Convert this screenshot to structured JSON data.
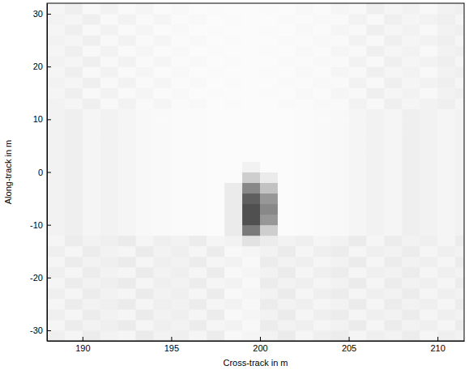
{
  "chart_data": {
    "type": "heatmap",
    "xlabel": "Cross-track in m",
    "ylabel": "Along-track in m",
    "xlim": [
      188,
      211.5
    ],
    "ylim": [
      -32,
      32
    ],
    "xticks": [
      190,
      195,
      200,
      205,
      210
    ],
    "yticks": [
      -30,
      -20,
      -10,
      0,
      10,
      20,
      30
    ],
    "grid": false,
    "zlim": [
      0,
      1
    ],
    "x_edges": [
      188,
      189,
      190,
      191,
      192,
      193,
      194,
      195,
      196,
      197,
      198,
      199,
      200,
      201,
      202,
      203,
      204,
      205,
      206,
      207,
      208,
      209,
      210,
      211,
      211.5
    ],
    "y_edges": [
      -32,
      -30,
      -28,
      -26,
      -24,
      -22,
      -20,
      -18,
      -16,
      -14,
      -12,
      -10,
      -8,
      -6,
      -4,
      -2,
      0,
      2,
      4,
      6,
      8,
      10,
      12,
      14,
      16,
      18,
      20,
      22,
      24,
      26,
      28,
      30,
      32
    ],
    "cells": [
      [
        0.12,
        0.08,
        0.14,
        0.1,
        0.08,
        0.15,
        0.1,
        0.12,
        0.08,
        0.14,
        0.06,
        0.08,
        0.1,
        0.15,
        0.08,
        0.12,
        0.14,
        0.08,
        0.12,
        0.1,
        0.14,
        0.08,
        0.12,
        0.1
      ],
      [
        0.08,
        0.14,
        0.1,
        0.12,
        0.15,
        0.08,
        0.12,
        0.1,
        0.14,
        0.08,
        0.1,
        0.06,
        0.14,
        0.1,
        0.12,
        0.08,
        0.1,
        0.15,
        0.08,
        0.14,
        0.1,
        0.12,
        0.08,
        0.14
      ],
      [
        0.12,
        0.08,
        0.14,
        0.1,
        0.08,
        0.15,
        0.1,
        0.12,
        0.08,
        0.14,
        0.06,
        0.08,
        0.1,
        0.15,
        0.08,
        0.12,
        0.14,
        0.08,
        0.12,
        0.1,
        0.14,
        0.08,
        0.12,
        0.1
      ],
      [
        0.08,
        0.14,
        0.1,
        0.12,
        0.15,
        0.08,
        0.12,
        0.1,
        0.14,
        0.08,
        0.1,
        0.06,
        0.14,
        0.1,
        0.12,
        0.08,
        0.1,
        0.15,
        0.08,
        0.14,
        0.1,
        0.12,
        0.08,
        0.14
      ],
      [
        0.12,
        0.08,
        0.14,
        0.1,
        0.08,
        0.15,
        0.1,
        0.12,
        0.08,
        0.14,
        0.06,
        0.08,
        0.1,
        0.15,
        0.08,
        0.12,
        0.14,
        0.08,
        0.12,
        0.1,
        0.14,
        0.08,
        0.12,
        0.1
      ],
      [
        0.08,
        0.14,
        0.1,
        0.12,
        0.15,
        0.08,
        0.12,
        0.1,
        0.14,
        0.08,
        0.1,
        0.06,
        0.14,
        0.1,
        0.12,
        0.08,
        0.1,
        0.15,
        0.08,
        0.14,
        0.1,
        0.12,
        0.08,
        0.14
      ],
      [
        0.12,
        0.08,
        0.14,
        0.1,
        0.08,
        0.15,
        0.1,
        0.12,
        0.08,
        0.14,
        0.06,
        0.08,
        0.1,
        0.15,
        0.08,
        0.12,
        0.14,
        0.08,
        0.12,
        0.1,
        0.14,
        0.08,
        0.12,
        0.1
      ],
      [
        0.08,
        0.14,
        0.1,
        0.12,
        0.15,
        0.08,
        0.12,
        0.1,
        0.14,
        0.08,
        0.1,
        0.06,
        0.14,
        0.1,
        0.12,
        0.08,
        0.1,
        0.15,
        0.08,
        0.14,
        0.1,
        0.12,
        0.08,
        0.14
      ],
      [
        0.12,
        0.08,
        0.14,
        0.1,
        0.08,
        0.15,
        0.1,
        0.12,
        0.08,
        0.14,
        0.06,
        0.08,
        0.1,
        0.15,
        0.08,
        0.12,
        0.14,
        0.08,
        0.12,
        0.1,
        0.14,
        0.08,
        0.12,
        0.1
      ],
      [
        0.08,
        0.14,
        0.1,
        0.12,
        0.15,
        0.08,
        0.12,
        0.1,
        0.14,
        0.08,
        0.1,
        0.2,
        0.14,
        0.1,
        0.12,
        0.08,
        0.1,
        0.15,
        0.08,
        0.14,
        0.1,
        0.12,
        0.08,
        0.14
      ],
      [
        0.1,
        0.12,
        0.08,
        0.1,
        0.08,
        0.06,
        0.05,
        0.04,
        0.04,
        0.03,
        0.15,
        0.6,
        0.3,
        0.03,
        0.04,
        0.05,
        0.06,
        0.08,
        0.1,
        0.08,
        0.12,
        0.1,
        0.08,
        0.1
      ],
      [
        0.1,
        0.12,
        0.08,
        0.1,
        0.08,
        0.06,
        0.05,
        0.04,
        0.04,
        0.03,
        0.15,
        0.75,
        0.5,
        0.03,
        0.04,
        0.05,
        0.06,
        0.08,
        0.1,
        0.08,
        0.12,
        0.1,
        0.08,
        0.1
      ],
      [
        0.1,
        0.12,
        0.08,
        0.1,
        0.08,
        0.06,
        0.05,
        0.04,
        0.04,
        0.03,
        0.15,
        0.75,
        0.55,
        0.03,
        0.04,
        0.05,
        0.06,
        0.08,
        0.1,
        0.08,
        0.12,
        0.1,
        0.08,
        0.1
      ],
      [
        0.1,
        0.12,
        0.08,
        0.1,
        0.08,
        0.06,
        0.05,
        0.04,
        0.04,
        0.03,
        0.15,
        0.7,
        0.5,
        0.03,
        0.04,
        0.05,
        0.06,
        0.08,
        0.1,
        0.08,
        0.12,
        0.1,
        0.08,
        0.1
      ],
      [
        0.1,
        0.12,
        0.08,
        0.1,
        0.08,
        0.06,
        0.05,
        0.04,
        0.04,
        0.03,
        0.15,
        0.55,
        0.35,
        0.03,
        0.04,
        0.05,
        0.06,
        0.08,
        0.1,
        0.08,
        0.12,
        0.1,
        0.08,
        0.1
      ],
      [
        0.1,
        0.12,
        0.08,
        0.1,
        0.08,
        0.06,
        0.05,
        0.04,
        0.04,
        0.03,
        0.03,
        0.3,
        0.15,
        0.03,
        0.04,
        0.05,
        0.06,
        0.08,
        0.1,
        0.08,
        0.12,
        0.1,
        0.08,
        0.1
      ],
      [
        0.1,
        0.12,
        0.08,
        0.1,
        0.08,
        0.06,
        0.05,
        0.04,
        0.04,
        0.03,
        0.03,
        0.1,
        0.03,
        0.03,
        0.04,
        0.05,
        0.06,
        0.08,
        0.1,
        0.08,
        0.12,
        0.1,
        0.08,
        0.1
      ],
      [
        0.1,
        0.12,
        0.08,
        0.1,
        0.08,
        0.06,
        0.05,
        0.04,
        0.04,
        0.03,
        0.03,
        0.03,
        0.03,
        0.03,
        0.04,
        0.05,
        0.06,
        0.08,
        0.1,
        0.08,
        0.12,
        0.1,
        0.08,
        0.1
      ],
      [
        0.1,
        0.12,
        0.08,
        0.1,
        0.08,
        0.06,
        0.05,
        0.04,
        0.04,
        0.03,
        0.03,
        0.03,
        0.03,
        0.03,
        0.04,
        0.05,
        0.06,
        0.08,
        0.1,
        0.08,
        0.12,
        0.1,
        0.08,
        0.1
      ],
      [
        0.1,
        0.12,
        0.08,
        0.1,
        0.08,
        0.06,
        0.05,
        0.04,
        0.04,
        0.03,
        0.03,
        0.03,
        0.03,
        0.03,
        0.04,
        0.05,
        0.06,
        0.08,
        0.1,
        0.08,
        0.12,
        0.1,
        0.08,
        0.1
      ],
      [
        0.1,
        0.12,
        0.08,
        0.1,
        0.08,
        0.06,
        0.05,
        0.04,
        0.04,
        0.03,
        0.03,
        0.03,
        0.03,
        0.03,
        0.04,
        0.05,
        0.06,
        0.08,
        0.1,
        0.08,
        0.12,
        0.1,
        0.08,
        0.1
      ],
      [
        0.1,
        0.12,
        0.08,
        0.1,
        0.08,
        0.06,
        0.05,
        0.04,
        0.04,
        0.03,
        0.03,
        0.03,
        0.03,
        0.03,
        0.04,
        0.05,
        0.06,
        0.08,
        0.1,
        0.08,
        0.12,
        0.1,
        0.08,
        0.1
      ],
      [
        0.1,
        0.08,
        0.12,
        0.06,
        0.1,
        0.05,
        0.08,
        0.04,
        0.06,
        0.03,
        0.04,
        0.03,
        0.03,
        0.05,
        0.04,
        0.06,
        0.05,
        0.1,
        0.06,
        0.12,
        0.08,
        0.1,
        0.12,
        0.08
      ],
      [
        0.08,
        0.12,
        0.06,
        0.1,
        0.05,
        0.08,
        0.04,
        0.06,
        0.03,
        0.04,
        0.03,
        0.03,
        0.04,
        0.03,
        0.06,
        0.04,
        0.08,
        0.06,
        0.12,
        0.08,
        0.1,
        0.06,
        0.1,
        0.12
      ],
      [
        0.1,
        0.08,
        0.12,
        0.06,
        0.1,
        0.05,
        0.08,
        0.04,
        0.06,
        0.03,
        0.04,
        0.03,
        0.03,
        0.05,
        0.04,
        0.06,
        0.05,
        0.1,
        0.06,
        0.12,
        0.08,
        0.1,
        0.12,
        0.08
      ],
      [
        0.08,
        0.12,
        0.06,
        0.1,
        0.05,
        0.08,
        0.04,
        0.06,
        0.03,
        0.04,
        0.03,
        0.03,
        0.04,
        0.03,
        0.06,
        0.04,
        0.08,
        0.06,
        0.12,
        0.08,
        0.1,
        0.06,
        0.1,
        0.12
      ],
      [
        0.1,
        0.08,
        0.12,
        0.06,
        0.1,
        0.05,
        0.08,
        0.04,
        0.06,
        0.03,
        0.04,
        0.03,
        0.03,
        0.05,
        0.04,
        0.06,
        0.05,
        0.1,
        0.06,
        0.12,
        0.08,
        0.1,
        0.12,
        0.08
      ],
      [
        0.08,
        0.12,
        0.06,
        0.1,
        0.05,
        0.08,
        0.04,
        0.06,
        0.03,
        0.04,
        0.03,
        0.03,
        0.04,
        0.03,
        0.06,
        0.04,
        0.08,
        0.06,
        0.12,
        0.08,
        0.1,
        0.06,
        0.1,
        0.12
      ],
      [
        0.1,
        0.08,
        0.12,
        0.06,
        0.1,
        0.05,
        0.08,
        0.04,
        0.06,
        0.03,
        0.04,
        0.03,
        0.03,
        0.05,
        0.04,
        0.06,
        0.05,
        0.1,
        0.06,
        0.12,
        0.08,
        0.1,
        0.12,
        0.08
      ],
      [
        0.08,
        0.12,
        0.06,
        0.1,
        0.05,
        0.08,
        0.04,
        0.06,
        0.03,
        0.04,
        0.03,
        0.03,
        0.04,
        0.03,
        0.06,
        0.04,
        0.08,
        0.06,
        0.12,
        0.08,
        0.1,
        0.06,
        0.1,
        0.12
      ],
      [
        0.1,
        0.08,
        0.12,
        0.06,
        0.1,
        0.05,
        0.08,
        0.04,
        0.06,
        0.03,
        0.04,
        0.03,
        0.03,
        0.05,
        0.04,
        0.06,
        0.05,
        0.1,
        0.06,
        0.12,
        0.08,
        0.1,
        0.12,
        0.08
      ],
      [
        0.08,
        0.12,
        0.06,
        0.1,
        0.05,
        0.08,
        0.04,
        0.06,
        0.03,
        0.04,
        0.03,
        0.03,
        0.04,
        0.03,
        0.06,
        0.04,
        0.08,
        0.06,
        0.12,
        0.08,
        0.1,
        0.06,
        0.1,
        0.12
      ]
    ]
  }
}
